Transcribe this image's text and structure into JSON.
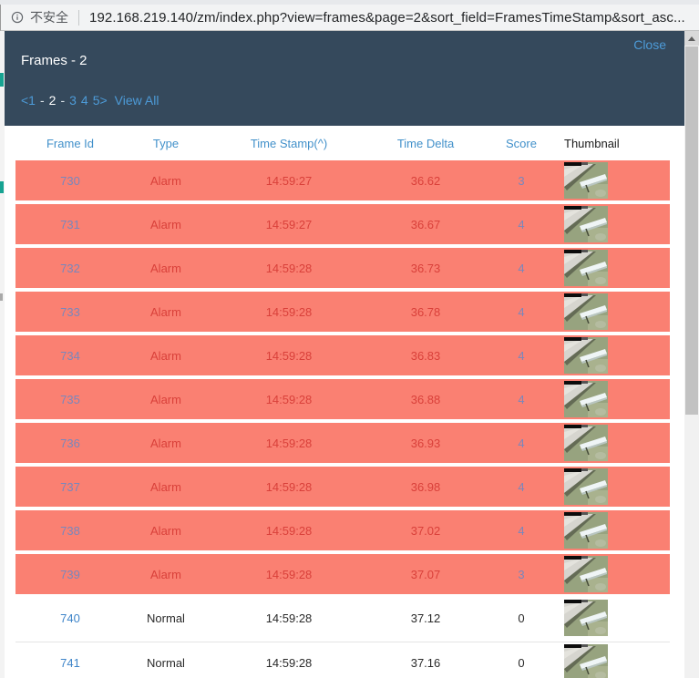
{
  "browser": {
    "security_label": "不安全",
    "url": "192.168.219.140/zm/index.php?view=frames&page=2&sort_field=FramesTimeStamp&sort_asc..."
  },
  "modal": {
    "title": "Frames - 2",
    "close_label": "Close",
    "pagination": {
      "tokens": [
        {
          "text": "<1",
          "type": "link"
        },
        {
          "text": "-",
          "type": "sep"
        },
        {
          "text": "2",
          "type": "current"
        },
        {
          "text": "-",
          "type": "sep"
        },
        {
          "text": "3",
          "type": "link"
        },
        {
          "text": "4",
          "type": "link"
        },
        {
          "text": "5>",
          "type": "link"
        },
        {
          "text": "View All",
          "type": "link"
        }
      ]
    }
  },
  "table": {
    "columns": [
      {
        "label": "Frame Id",
        "sortable": true
      },
      {
        "label": "Type",
        "sortable": true
      },
      {
        "label": "Time Stamp(^)",
        "sortable": true
      },
      {
        "label": "Time Delta",
        "sortable": true
      },
      {
        "label": "Score",
        "sortable": true
      },
      {
        "label": "Thumbnail",
        "sortable": false
      }
    ],
    "thumbnail_alt": "ceiling-camera-frame",
    "rows": [
      {
        "frame_id": "730",
        "type": "Alarm",
        "time_stamp": "14:59:27",
        "time_delta": "36.62",
        "score": "3"
      },
      {
        "frame_id": "731",
        "type": "Alarm",
        "time_stamp": "14:59:27",
        "time_delta": "36.67",
        "score": "4"
      },
      {
        "frame_id": "732",
        "type": "Alarm",
        "time_stamp": "14:59:28",
        "time_delta": "36.73",
        "score": "4"
      },
      {
        "frame_id": "733",
        "type": "Alarm",
        "time_stamp": "14:59:28",
        "time_delta": "36.78",
        "score": "4"
      },
      {
        "frame_id": "734",
        "type": "Alarm",
        "time_stamp": "14:59:28",
        "time_delta": "36.83",
        "score": "4"
      },
      {
        "frame_id": "735",
        "type": "Alarm",
        "time_stamp": "14:59:28",
        "time_delta": "36.88",
        "score": "4"
      },
      {
        "frame_id": "736",
        "type": "Alarm",
        "time_stamp": "14:59:28",
        "time_delta": "36.93",
        "score": "4"
      },
      {
        "frame_id": "737",
        "type": "Alarm",
        "time_stamp": "14:59:28",
        "time_delta": "36.98",
        "score": "4"
      },
      {
        "frame_id": "738",
        "type": "Alarm",
        "time_stamp": "14:59:28",
        "time_delta": "37.02",
        "score": "4"
      },
      {
        "frame_id": "739",
        "type": "Alarm",
        "time_stamp": "14:59:28",
        "time_delta": "37.07",
        "score": "3"
      },
      {
        "frame_id": "740",
        "type": "Normal",
        "time_stamp": "14:59:28",
        "time_delta": "37.12",
        "score": "0"
      },
      {
        "frame_id": "741",
        "type": "Normal",
        "time_stamp": "14:59:28",
        "time_delta": "37.16",
        "score": "0"
      }
    ]
  },
  "colors": {
    "header_bg": "#35495c",
    "link_on_dark": "#4d9bd8",
    "th_link": "#4190ca",
    "alarm_row_bg": "#fa8072",
    "alarm_text": "#d9403a",
    "alarm_link": "#7887bd",
    "normal_link": "#3f85c9"
  }
}
